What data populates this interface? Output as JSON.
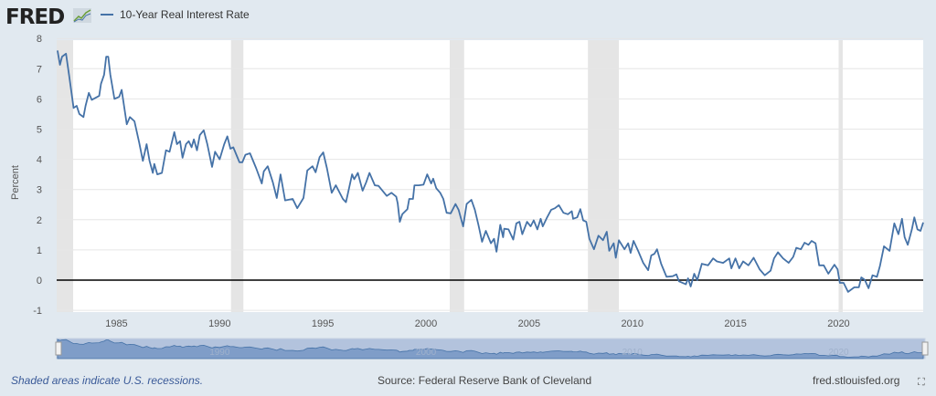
{
  "header": {
    "logo": "FRED",
    "legend_label": "10-Year Real Interest Rate"
  },
  "footer": {
    "note": "Shaded areas indicate U.S. recessions.",
    "source": "Source: Federal Reserve Bank of Cleveland",
    "site": "fred.stlouisfed.org",
    "fullscreen_icon": "expand-icon"
  },
  "colors": {
    "line": "#4572a7",
    "recession": "#e5e5e5",
    "zero_line": "#000000",
    "background": "#e1e9f0",
    "navigator": "#b3c3dd"
  },
  "chart_data": {
    "type": "line",
    "title": "",
    "xlabel": "",
    "ylabel": "Percent",
    "xlim": [
      1982.1,
      2024.1
    ],
    "ylim": [
      -1,
      8
    ],
    "grid": true,
    "legend_placement": "top-left",
    "x_ticks": [
      "1985",
      "1990",
      "1995",
      "2000",
      "2005",
      "2010",
      "2015",
      "2020"
    ],
    "y_ticks": [
      "8",
      "7",
      "6",
      "5",
      "4",
      "3",
      "2",
      "1",
      "0",
      "-1"
    ],
    "navigator_ticks": [
      "1990",
      "2000",
      "2010",
      "2020"
    ],
    "recessions": [
      [
        1981.6,
        1982.9
      ],
      [
        1990.55,
        1991.15
      ],
      [
        2001.15,
        2001.85
      ],
      [
        2007.85,
        2009.35
      ],
      [
        2020.0,
        2020.2
      ]
    ],
    "series": [
      {
        "name": "10-Year Real Interest Rate",
        "points": [
          [
            1982.14,
            7.6
          ],
          [
            1982.26,
            7.13
          ],
          [
            1982.36,
            7.4
          ],
          [
            1982.55,
            7.5
          ],
          [
            1982.7,
            6.8
          ],
          [
            1982.8,
            6.3
          ],
          [
            1982.92,
            5.7
          ],
          [
            1983.07,
            5.77
          ],
          [
            1983.2,
            5.5
          ],
          [
            1983.4,
            5.4
          ],
          [
            1983.5,
            5.77
          ],
          [
            1983.66,
            6.2
          ],
          [
            1983.8,
            5.97
          ],
          [
            1984.16,
            6.1
          ],
          [
            1984.25,
            6.5
          ],
          [
            1984.4,
            6.8
          ],
          [
            1984.5,
            7.4
          ],
          [
            1984.6,
            7.4
          ],
          [
            1984.7,
            6.8
          ],
          [
            1984.9,
            6.0
          ],
          [
            1985.13,
            6.07
          ],
          [
            1985.25,
            6.3
          ],
          [
            1985.5,
            5.16
          ],
          [
            1985.65,
            5.4
          ],
          [
            1985.87,
            5.26
          ],
          [
            1986.1,
            4.55
          ],
          [
            1986.28,
            3.95
          ],
          [
            1986.46,
            4.5
          ],
          [
            1986.6,
            3.95
          ],
          [
            1986.76,
            3.55
          ],
          [
            1986.83,
            3.85
          ],
          [
            1986.98,
            3.5
          ],
          [
            1987.2,
            3.55
          ],
          [
            1987.4,
            4.3
          ],
          [
            1987.57,
            4.25
          ],
          [
            1987.8,
            4.9
          ],
          [
            1987.93,
            4.5
          ],
          [
            1988.08,
            4.6
          ],
          [
            1988.2,
            4.05
          ],
          [
            1988.37,
            4.5
          ],
          [
            1988.5,
            4.6
          ],
          [
            1988.64,
            4.4
          ],
          [
            1988.75,
            4.66
          ],
          [
            1988.9,
            4.3
          ],
          [
            1989.04,
            4.8
          ],
          [
            1989.23,
            4.96
          ],
          [
            1989.4,
            4.5
          ],
          [
            1989.63,
            3.75
          ],
          [
            1989.78,
            4.25
          ],
          [
            1990.0,
            4.0
          ],
          [
            1990.22,
            4.5
          ],
          [
            1990.37,
            4.76
          ],
          [
            1990.52,
            4.35
          ],
          [
            1990.66,
            4.4
          ],
          [
            1990.96,
            3.9
          ],
          [
            1991.1,
            3.9
          ],
          [
            1991.25,
            4.15
          ],
          [
            1991.47,
            4.2
          ],
          [
            1991.77,
            3.7
          ],
          [
            1992.04,
            3.2
          ],
          [
            1992.14,
            3.6
          ],
          [
            1992.33,
            3.77
          ],
          [
            1992.58,
            3.24
          ],
          [
            1992.77,
            2.72
          ],
          [
            1992.95,
            3.5
          ],
          [
            1993.17,
            2.64
          ],
          [
            1993.54,
            2.69
          ],
          [
            1993.76,
            2.38
          ],
          [
            1994.06,
            2.72
          ],
          [
            1994.25,
            3.63
          ],
          [
            1994.5,
            3.77
          ],
          [
            1994.65,
            3.57
          ],
          [
            1994.84,
            4.07
          ],
          [
            1995.02,
            4.23
          ],
          [
            1995.2,
            3.7
          ],
          [
            1995.43,
            2.89
          ],
          [
            1995.63,
            3.14
          ],
          [
            1995.97,
            2.69
          ],
          [
            1996.12,
            2.58
          ],
          [
            1996.42,
            3.5
          ],
          [
            1996.52,
            3.34
          ],
          [
            1996.7,
            3.55
          ],
          [
            1996.93,
            2.96
          ],
          [
            1997.1,
            3.24
          ],
          [
            1997.26,
            3.55
          ],
          [
            1997.52,
            3.14
          ],
          [
            1997.7,
            3.12
          ],
          [
            1998.1,
            2.79
          ],
          [
            1998.33,
            2.89
          ],
          [
            1998.56,
            2.76
          ],
          [
            1998.63,
            2.54
          ],
          [
            1998.73,
            1.93
          ],
          [
            1998.85,
            2.18
          ],
          [
            1999.1,
            2.35
          ],
          [
            1999.19,
            2.69
          ],
          [
            1999.37,
            2.69
          ],
          [
            1999.44,
            3.14
          ],
          [
            1999.65,
            3.14
          ],
          [
            1999.88,
            3.16
          ],
          [
            2000.06,
            3.5
          ],
          [
            2000.25,
            3.2
          ],
          [
            2000.35,
            3.36
          ],
          [
            2000.5,
            3.04
          ],
          [
            2000.69,
            2.89
          ],
          [
            2000.84,
            2.69
          ],
          [
            2001.0,
            2.23
          ],
          [
            2001.2,
            2.21
          ],
          [
            2001.43,
            2.52
          ],
          [
            2001.58,
            2.33
          ],
          [
            2001.8,
            1.78
          ],
          [
            2001.97,
            2.52
          ],
          [
            2002.2,
            2.66
          ],
          [
            2002.37,
            2.33
          ],
          [
            2002.54,
            1.83
          ],
          [
            2002.72,
            1.27
          ],
          [
            2002.9,
            1.63
          ],
          [
            2003.15,
            1.22
          ],
          [
            2003.3,
            1.37
          ],
          [
            2003.42,
            0.94
          ],
          [
            2003.6,
            1.83
          ],
          [
            2003.74,
            1.42
          ],
          [
            2003.79,
            1.7
          ],
          [
            2004.0,
            1.68
          ],
          [
            2004.23,
            1.34
          ],
          [
            2004.38,
            1.88
          ],
          [
            2004.53,
            1.93
          ],
          [
            2004.67,
            1.52
          ],
          [
            2004.9,
            1.93
          ],
          [
            2005.07,
            1.78
          ],
          [
            2005.22,
            1.98
          ],
          [
            2005.4,
            1.68
          ],
          [
            2005.56,
            2.03
          ],
          [
            2005.66,
            1.78
          ],
          [
            2005.85,
            2.05
          ],
          [
            2006.07,
            2.33
          ],
          [
            2006.25,
            2.38
          ],
          [
            2006.44,
            2.48
          ],
          [
            2006.66,
            2.23
          ],
          [
            2006.88,
            2.18
          ],
          [
            2007.07,
            2.28
          ],
          [
            2007.13,
            2.03
          ],
          [
            2007.33,
            2.08
          ],
          [
            2007.48,
            2.35
          ],
          [
            2007.62,
            1.98
          ],
          [
            2007.77,
            1.93
          ],
          [
            2007.92,
            1.37
          ],
          [
            2008.14,
            1.02
          ],
          [
            2008.36,
            1.47
          ],
          [
            2008.58,
            1.32
          ],
          [
            2008.76,
            1.6
          ],
          [
            2008.88,
            0.97
          ],
          [
            2009.1,
            1.22
          ],
          [
            2009.2,
            0.74
          ],
          [
            2009.35,
            1.32
          ],
          [
            2009.62,
            1.02
          ],
          [
            2009.8,
            1.22
          ],
          [
            2009.92,
            0.9
          ],
          [
            2010.06,
            1.3
          ],
          [
            2010.28,
            0.97
          ],
          [
            2010.53,
            0.57
          ],
          [
            2010.77,
            0.33
          ],
          [
            2010.92,
            0.82
          ],
          [
            2011.07,
            0.87
          ],
          [
            2011.2,
            1.02
          ],
          [
            2011.4,
            0.54
          ],
          [
            2011.66,
            0.11
          ],
          [
            2011.96,
            0.13
          ],
          [
            2012.14,
            0.19
          ],
          [
            2012.26,
            -0.04
          ],
          [
            2012.6,
            -0.14
          ],
          [
            2012.7,
            0.06
          ],
          [
            2012.83,
            -0.21
          ],
          [
            2013.0,
            0.21
          ],
          [
            2013.15,
            0.0
          ],
          [
            2013.37,
            0.54
          ],
          [
            2013.67,
            0.49
          ],
          [
            2013.92,
            0.72
          ],
          [
            2014.1,
            0.62
          ],
          [
            2014.4,
            0.57
          ],
          [
            2014.7,
            0.72
          ],
          [
            2014.8,
            0.39
          ],
          [
            2015.0,
            0.72
          ],
          [
            2015.18,
            0.39
          ],
          [
            2015.37,
            0.62
          ],
          [
            2015.63,
            0.49
          ],
          [
            2015.88,
            0.74
          ],
          [
            2016.17,
            0.36
          ],
          [
            2016.42,
            0.16
          ],
          [
            2016.7,
            0.31
          ],
          [
            2016.87,
            0.72
          ],
          [
            2017.06,
            0.92
          ],
          [
            2017.31,
            0.72
          ],
          [
            2017.58,
            0.57
          ],
          [
            2017.8,
            0.77
          ],
          [
            2017.95,
            1.07
          ],
          [
            2018.17,
            1.02
          ],
          [
            2018.35,
            1.24
          ],
          [
            2018.54,
            1.17
          ],
          [
            2018.69,
            1.3
          ],
          [
            2018.88,
            1.22
          ],
          [
            2019.06,
            0.49
          ],
          [
            2019.28,
            0.49
          ],
          [
            2019.5,
            0.21
          ],
          [
            2019.8,
            0.51
          ],
          [
            2019.95,
            0.36
          ],
          [
            2020.06,
            -0.09
          ],
          [
            2020.24,
            -0.09
          ],
          [
            2020.46,
            -0.39
          ],
          [
            2020.76,
            -0.24
          ],
          [
            2020.98,
            -0.24
          ],
          [
            2021.1,
            0.09
          ],
          [
            2021.27,
            0.01
          ],
          [
            2021.45,
            -0.27
          ],
          [
            2021.64,
            0.16
          ],
          [
            2021.86,
            0.11
          ],
          [
            2022.0,
            0.46
          ],
          [
            2022.2,
            1.12
          ],
          [
            2022.47,
            0.97
          ],
          [
            2022.7,
            1.88
          ],
          [
            2022.9,
            1.52
          ],
          [
            2023.07,
            2.03
          ],
          [
            2023.2,
            1.42
          ],
          [
            2023.35,
            1.17
          ],
          [
            2023.55,
            1.68
          ],
          [
            2023.67,
            2.08
          ],
          [
            2023.82,
            1.68
          ],
          [
            2023.97,
            1.63
          ],
          [
            2024.1,
            1.91
          ]
        ]
      }
    ]
  }
}
